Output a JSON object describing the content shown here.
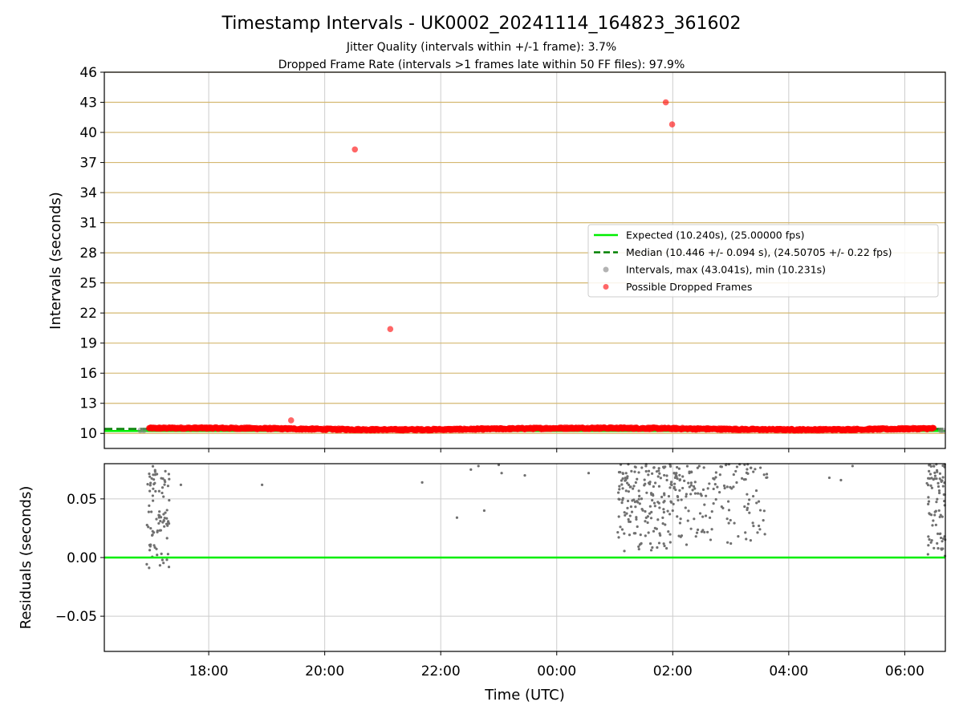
{
  "page": {
    "title": "Timestamp Intervals - UK0002_20241114_164823_361602",
    "subtitle_line1": "Jitter Quality (intervals within +/-1 frame): 3.7%",
    "subtitle_line2": "Dropped Frame Rate (intervals >1 frames late within 50 FF files): 97.9%"
  },
  "colors": {
    "expected": "#00ee00",
    "median": "#008000",
    "intervals": "#808080",
    "dropped": "#ff0000",
    "frame_grid": "#d4b870",
    "grid": "#cccccc",
    "residual_points": "#707070"
  },
  "chart_data": [
    {
      "type": "scatter",
      "xlabel": "",
      "ylabel": "Intervals (seconds)",
      "xlim_hours": [
        16.2,
        30.7
      ],
      "ylim": [
        8.5,
        46
      ],
      "yticks": [
        10,
        13,
        16,
        19,
        22,
        25,
        28,
        31,
        34,
        37,
        40,
        43,
        46
      ],
      "ytick_labels": [
        "10",
        "13",
        "16",
        "19",
        "22",
        "25",
        "28",
        "31",
        "34",
        "37",
        "40",
        "43",
        "46"
      ],
      "grid": true,
      "legend_position": "center-right",
      "legend": [
        {
          "label": "Expected (10.240s), (25.00000 fps)",
          "kind": "line-solid",
          "color_key": "expected"
        },
        {
          "label": "Median (10.446 +/- 0.094 s), (24.50705 +/- 0.22 fps)",
          "kind": "line-dashed",
          "color_key": "median"
        },
        {
          "label": "Intervals, max (43.041s), min (10.231s)",
          "kind": "dot",
          "color_key": "intervals"
        },
        {
          "label": "Possible Dropped Frames",
          "kind": "dot",
          "color_key": "dropped"
        }
      ],
      "series": [
        {
          "name": "Expected (10.240s), (25.00000 fps)",
          "kind": "hline",
          "y": 10.24
        },
        {
          "name": "Median (10.446 +/- 0.094 s), (24.50705 +/- 0.22 fps)",
          "kind": "hline",
          "y": 10.446
        },
        {
          "name": "Possible Dropped Frames",
          "kind": "band",
          "x_start": 16.97,
          "x_end": 30.5,
          "y_center": 10.45,
          "y_spread": 0.1
        },
        {
          "name": "Possible Dropped Frames",
          "kind": "outliers",
          "x": [
            19.42,
            20.52,
            21.13,
            25.88,
            25.99
          ],
          "y": [
            11.3,
            38.3,
            20.4,
            43.0,
            40.8
          ]
        }
      ]
    },
    {
      "type": "scatter",
      "xlabel": "Time (UTC)",
      "ylabel": "Residuals (seconds)",
      "xlim_hours": [
        16.2,
        30.7
      ],
      "ylim": [
        -0.08,
        0.08
      ],
      "yticks": [
        -0.05,
        0.0,
        0.05
      ],
      "ytick_labels": [
        "−0.05",
        "0.00",
        "0.05"
      ],
      "xticks_hours": [
        18,
        20,
        22,
        24,
        26,
        28,
        30
      ],
      "xtick_labels": [
        "18:00",
        "20:00",
        "22:00",
        "00:00",
        "02:00",
        "04:00",
        "06:00"
      ],
      "grid": true,
      "series": [
        {
          "name": "",
          "kind": "hline",
          "y": 0.0
        },
        {
          "name": "",
          "kind": "clusters",
          "clusters": [
            {
              "x_start": 16.93,
              "x_end": 17.32,
              "y_min": -0.01,
              "y_max": 0.08,
              "count": 90
            },
            {
              "x_start": 25.05,
              "x_end": 26.15,
              "y_min": 0.005,
              "y_max": 0.08,
              "count": 200
            },
            {
              "x_start": 26.15,
              "x_end": 27.65,
              "y_min": 0.01,
              "y_max": 0.08,
              "count": 130
            },
            {
              "x_start": 30.38,
              "x_end": 30.7,
              "y_min": 0.0,
              "y_max": 0.08,
              "count": 80
            }
          ]
        },
        {
          "name": "",
          "kind": "sparse",
          "x": [
            17.52,
            18.92,
            22.75,
            22.52,
            22.65,
            23.05,
            23.45,
            24.55,
            22.28,
            23.0,
            21.68,
            25.9,
            26.4,
            28.7,
            28.9,
            29.1,
            26.5
          ],
          "y": [
            0.062,
            0.062,
            0.04,
            0.075,
            0.078,
            0.072,
            0.07,
            0.072,
            0.034,
            0.079,
            0.064,
            0.066,
            0.018,
            0.068,
            0.066,
            0.078,
            0.022
          ]
        }
      ]
    }
  ]
}
